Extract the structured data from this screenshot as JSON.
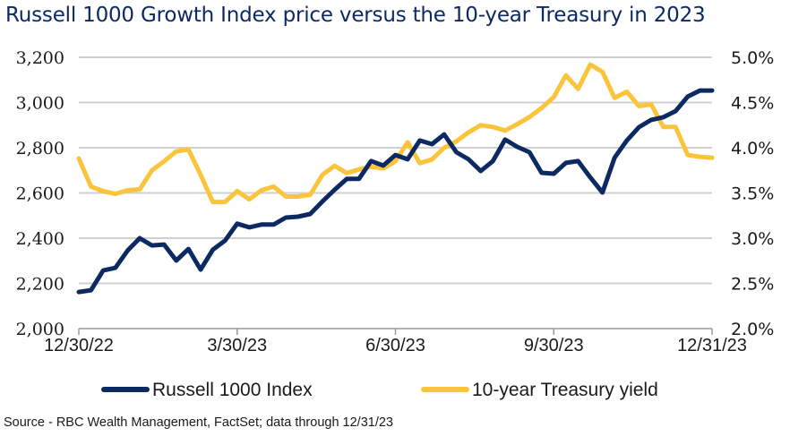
{
  "chart_data": {
    "type": "line",
    "title": "Russell 1000 Growth Index price versus the 10-year Treasury in 2023",
    "source": "Source - RBC Wealth Management, FactSet; data through 12/31/23",
    "x_tick_labels": [
      "12/30/22",
      "3/30/23",
      "6/30/23",
      "9/30/23",
      "12/31/23"
    ],
    "y_left": {
      "label": "",
      "ylim": [
        2000,
        3200
      ],
      "ticks": [
        2000,
        2200,
        2400,
        2600,
        2800,
        3000,
        3200
      ],
      "tick_labels": [
        "2,000",
        "2,200",
        "2,400",
        "2,600",
        "2,800",
        "3,000",
        "3,200"
      ]
    },
    "y_right": {
      "label": "",
      "ylim": [
        2.0,
        5.0
      ],
      "ticks": [
        2.0,
        2.5,
        3.0,
        3.5,
        4.0,
        4.5,
        5.0
      ],
      "tick_labels": [
        "2.0%",
        "2.5%",
        "3.0%",
        "3.5%",
        "4.0%",
        "4.5%",
        "5.0%"
      ]
    },
    "grid": true,
    "legend_position": "bottom",
    "series": [
      {
        "name": "Russell 1000 Index",
        "axis": "left",
        "color": "#0c2a62",
        "values": [
          2162,
          2170,
          2257,
          2269,
          2345,
          2400,
          2368,
          2372,
          2301,
          2352,
          2261,
          2349,
          2389,
          2464,
          2448,
          2460,
          2460,
          2491,
          2495,
          2507,
          2562,
          2614,
          2662,
          2662,
          2741,
          2721,
          2768,
          2749,
          2832,
          2816,
          2859,
          2780,
          2749,
          2697,
          2741,
          2836,
          2804,
          2780,
          2689,
          2685,
          2733,
          2741,
          2669,
          2602,
          2756,
          2832,
          2891,
          2923,
          2935,
          2962,
          3026,
          3053,
          3053
        ]
      },
      {
        "name": "10-year Treasury yield",
        "axis": "right",
        "color": "#fcc43a",
        "values": [
          3.88,
          3.57,
          3.52,
          3.49,
          3.53,
          3.54,
          3.75,
          3.85,
          3.96,
          3.98,
          3.7,
          3.4,
          3.4,
          3.52,
          3.43,
          3.53,
          3.57,
          3.46,
          3.46,
          3.48,
          3.7,
          3.8,
          3.72,
          3.76,
          3.79,
          3.77,
          3.85,
          4.06,
          3.83,
          3.87,
          4.0,
          4.07,
          4.17,
          4.25,
          4.23,
          4.19,
          4.26,
          4.34,
          4.44,
          4.56,
          4.8,
          4.65,
          4.92,
          4.84,
          4.55,
          4.62,
          4.46,
          4.48,
          4.23,
          4.23,
          3.92,
          3.9,
          3.89
        ]
      }
    ]
  },
  "colors": {
    "navy": "#0c2a62",
    "gold": "#fcc43a",
    "grid": "#d0d0d0",
    "axis": "#9a9a9a"
  }
}
